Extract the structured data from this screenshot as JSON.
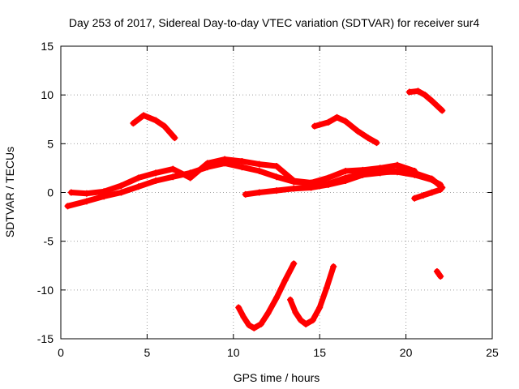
{
  "chart_data": {
    "type": "scatter",
    "title": "Day 253 of 2017, Sidereal Day-to-day VTEC variation (SDTVAR) for receiver sur4",
    "xlabel": "GPS time / hours",
    "ylabel": "SDTVAR / TECUs",
    "xlim": [
      0,
      25
    ],
    "ylim": [
      -15,
      15
    ],
    "xticks": [
      "0",
      "5",
      "10",
      "15",
      "20",
      "25"
    ],
    "yticks": [
      "15",
      "10",
      "5",
      "0",
      "-5",
      "-10",
      "-15"
    ],
    "grid": true,
    "marker_color": "#ff0000",
    "series": [
      {
        "x": [
          0.4,
          1.5,
          2.5,
          3.5,
          4.5,
          5.5,
          6.5,
          7.5,
          8.5,
          9.5,
          10.5,
          11.5,
          12.5,
          13.5,
          14.5,
          15.5,
          16.5,
          17.5,
          18.5,
          19.5,
          20.5,
          21.5,
          22.0
        ],
        "y": [
          -1.4,
          -0.9,
          -0.4,
          0.0,
          0.6,
          1.2,
          1.6,
          2.0,
          2.6,
          3.0,
          2.6,
          2.2,
          1.6,
          1.1,
          0.9,
          0.9,
          1.5,
          1.9,
          2.1,
          2.1,
          1.8,
          1.3,
          0.8
        ]
      },
      {
        "x": [
          0.6,
          1.5,
          2.5,
          3.5,
          4.5,
          5.5,
          6.5,
          7.5,
          8.5,
          9.5,
          10.5,
          11.5,
          12.5,
          13.5,
          14.5,
          15.5,
          16.5,
          17.5,
          18.5,
          19.5,
          20.5
        ],
        "y": [
          0.0,
          -0.1,
          0.1,
          0.7,
          1.5,
          2.0,
          2.4,
          1.5,
          3.0,
          3.4,
          3.2,
          2.9,
          2.7,
          1.2,
          1.0,
          1.5,
          2.2,
          2.3,
          2.5,
          2.8,
          2.2
        ]
      },
      {
        "x": [
          4.2,
          4.8,
          5.5,
          6.0,
          6.6
        ],
        "y": [
          7.1,
          7.9,
          7.4,
          6.8,
          5.6
        ]
      },
      {
        "x": [
          14.7,
          15.5,
          16.0,
          16.5,
          17.2,
          17.8,
          18.3
        ],
        "y": [
          6.8,
          7.2,
          7.7,
          7.3,
          6.3,
          5.6,
          5.1
        ]
      },
      {
        "x": [
          20.2,
          20.7,
          21.1,
          21.5,
          21.8,
          22.1
        ],
        "y": [
          10.3,
          10.4,
          10.0,
          9.4,
          8.9,
          8.4
        ]
      },
      {
        "x": [
          10.7,
          11.5,
          12.5,
          13.5,
          14.5,
          15.5,
          16.5,
          17.5,
          18.5,
          19.5,
          20.5,
          21.5,
          22.1
        ],
        "y": [
          -0.2,
          0.0,
          0.2,
          0.4,
          0.5,
          0.8,
          1.2,
          1.8,
          2.0,
          2.2,
          2.0,
          1.4,
          0.5
        ]
      },
      {
        "x": [
          20.5,
          21.0,
          21.5,
          22.0
        ],
        "y": [
          -0.6,
          -0.3,
          0.0,
          0.3
        ]
      },
      {
        "x": [
          10.3,
          10.6,
          10.9,
          11.2,
          11.6,
          12.0,
          12.5,
          13.0,
          13.5
        ],
        "y": [
          -11.8,
          -12.8,
          -13.6,
          -13.9,
          -13.5,
          -12.4,
          -10.8,
          -9.0,
          -7.3
        ]
      },
      {
        "x": [
          13.3,
          13.6,
          13.9,
          14.2,
          14.6,
          15.0,
          15.4,
          15.8
        ],
        "y": [
          -11.0,
          -12.3,
          -13.1,
          -13.5,
          -13.1,
          -11.8,
          -9.8,
          -7.6
        ]
      },
      {
        "x": [
          21.8,
          22.0
        ],
        "y": [
          -8.1,
          -8.6
        ]
      }
    ]
  }
}
